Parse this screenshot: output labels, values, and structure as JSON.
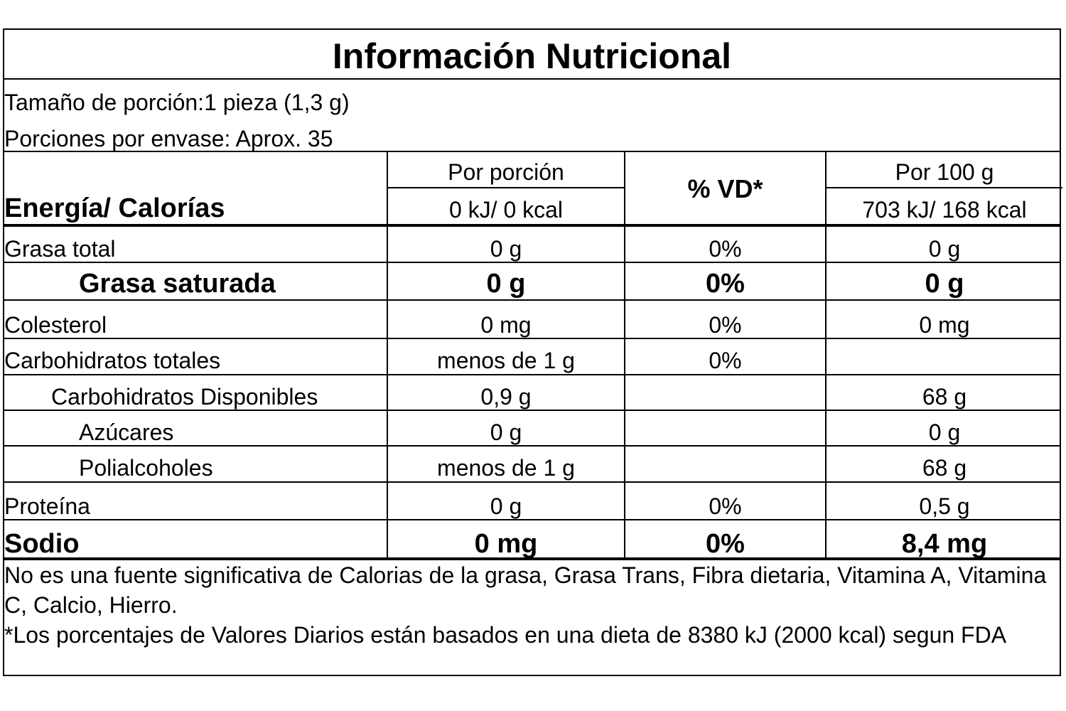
{
  "title": "Información Nutricional",
  "serving_size": "Tamaño de porción:1 pieza (1,3 g)",
  "servings_per_container": "Porciones por envase:  Aprox. 35",
  "energy_label": "Energía/ Calorías",
  "headers": {
    "per_serving": "Por porción",
    "dv": "% VD*",
    "per_100g": "Por 100 g"
  },
  "energy": {
    "per_serving": "0 kJ/ 0 kcal",
    "per_100g": "703 kJ/ 168 kcal"
  },
  "rows": [
    {
      "name": "Grasa total",
      "per_serving": "0 g",
      "dv": "0%",
      "per_100g": "0 g"
    },
    {
      "name": "Grasa saturada",
      "per_serving": "0 g",
      "dv": "0%",
      "per_100g": "0 g"
    },
    {
      "name": "Colesterol",
      "per_serving": "0 mg",
      "dv": "0%",
      "per_100g": "0 mg"
    },
    {
      "name": "Carbohidratos totales",
      "per_serving": "menos de 1 g",
      "dv": "0%",
      "per_100g": ""
    },
    {
      "name": "Carbohidratos Disponibles",
      "per_serving": "0,9 g",
      "dv": "",
      "per_100g": "68 g"
    },
    {
      "name": "Azúcares",
      "per_serving": "0 g",
      "dv": "",
      "per_100g": "0 g"
    },
    {
      "name": "Polialcoholes",
      "per_serving": "menos de 1 g",
      "dv": "",
      "per_100g": "68 g"
    },
    {
      "name": "Proteína",
      "per_serving": "0 g",
      "dv": "0%",
      "per_100g": "0,5 g"
    },
    {
      "name": "Sodio",
      "per_serving": "0 mg",
      "dv": "0%",
      "per_100g": "8,4 mg"
    }
  ],
  "footnote_1": "No es una fuente significativa de Calorias de la grasa, Grasa Trans, Fibra dietaria, Vitamina A, Vitamina C, Calcio, Hierro.",
  "footnote_2": "*Los porcentajes de Valores Diarios están basados en una dieta de 8380 kJ (2000 kcal) segun FDA"
}
